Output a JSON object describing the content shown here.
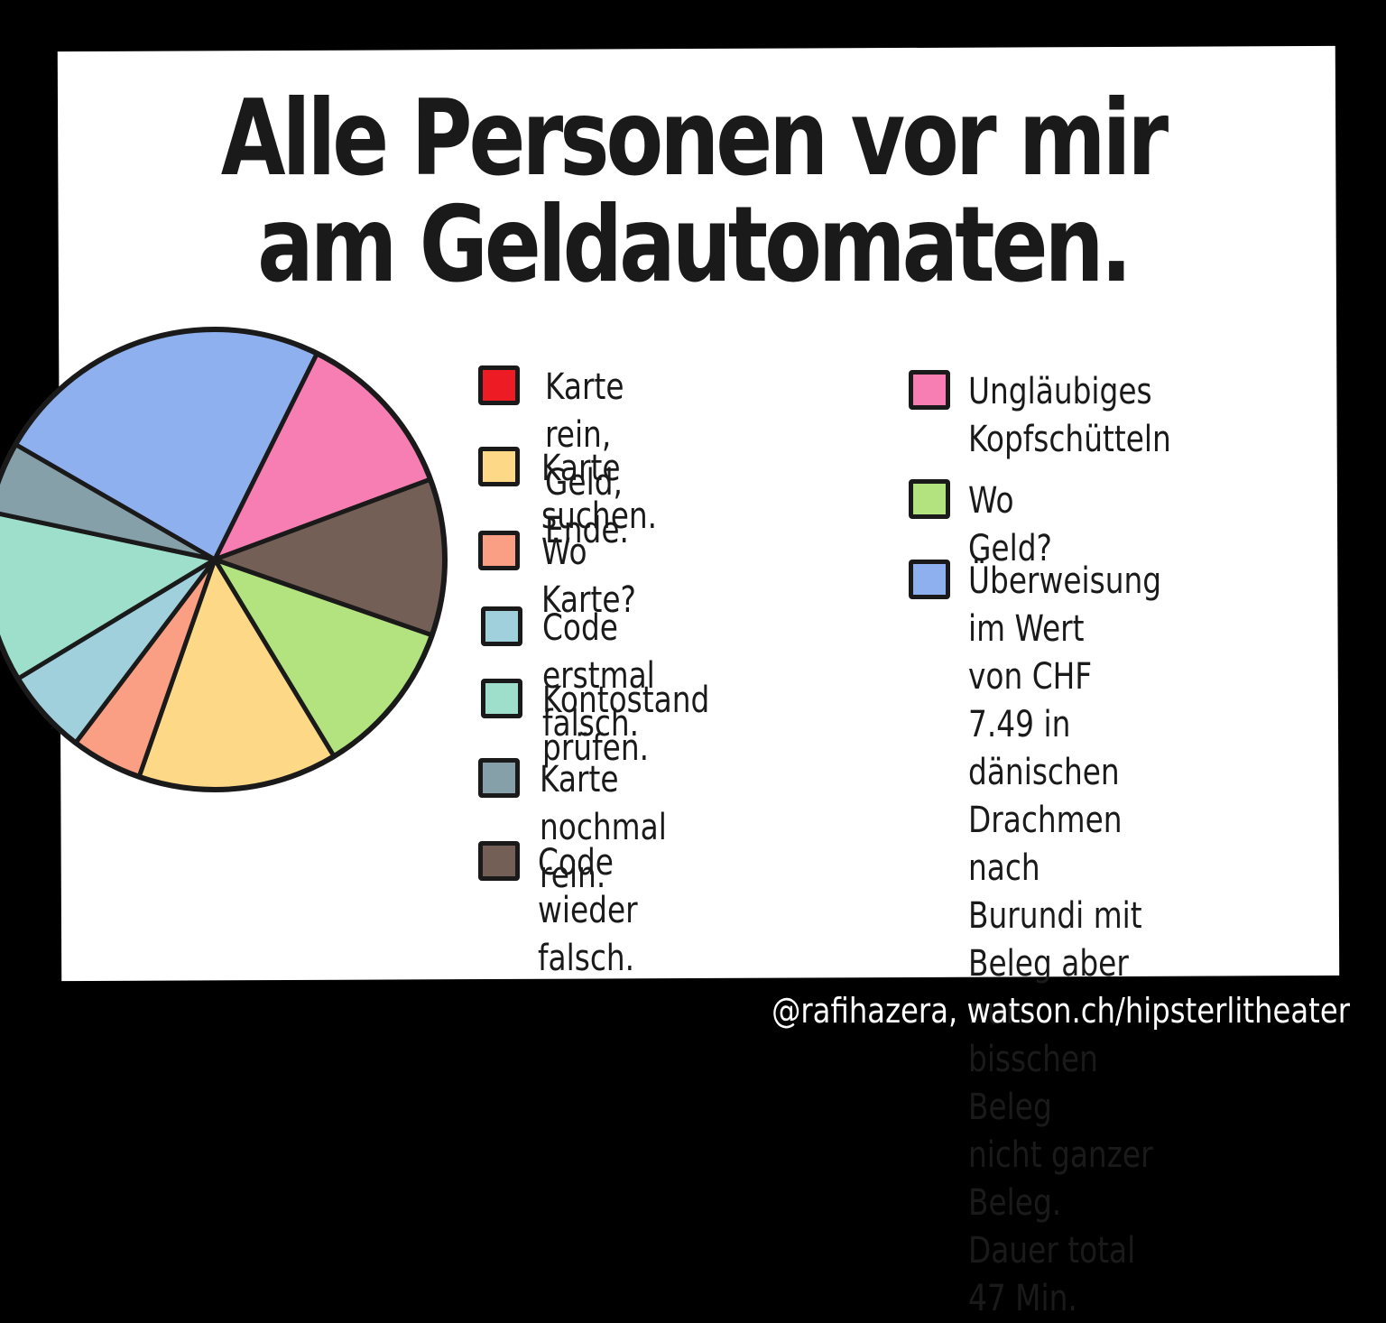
{
  "title": "Alle Personen vor mir\nam Geldautomaten.",
  "credit": "@rafihazera, watson.ch/hipsterlitheater",
  "chart_data": {
    "type": "pie",
    "title": "Alle Personen vor mir am Geldautomaten.",
    "unit": "percent",
    "slices": [
      {
        "label": "Überweisung im Wert von CHF 7.49 in dänischen Drachmen nach Burundi mit Beleg aber nur bisschen Beleg nicht ganzer Beleg. Dauer total 47 Min.",
        "value": 24,
        "color": "#8fb0ee"
      },
      {
        "label": "Ungläubiges Kopfschütteln",
        "value": 12,
        "color": "#f77eb2"
      },
      {
        "label": "Code wieder falsch.",
        "value": 11,
        "color": "#735f55"
      },
      {
        "label": "Wo Geld?",
        "value": 11,
        "color": "#b3e37f"
      },
      {
        "label": "Karte suchen.",
        "value": 14,
        "color": "#fcd887"
      },
      {
        "label": "Wo Karte?",
        "value": 5,
        "color": "#fb9f84"
      },
      {
        "label": "Code erstmal falsch.",
        "value": 6,
        "color": "#9fd0dc"
      },
      {
        "label": "Kontostand prüfen.",
        "value": 12,
        "color": "#9ddfcb"
      },
      {
        "label": "Karte nochmal rein.",
        "value": 5,
        "color": "#85a0a8"
      },
      {
        "label": "Karte rein, Geld, Ende.",
        "value": 0,
        "color": "#ed1c24"
      }
    ]
  },
  "legend": [
    {
      "label": "Karte rein, Geld, Ende.",
      "color": "#ed1c24"
    },
    {
      "label": "Karte suchen.",
      "color": "#fcd887"
    },
    {
      "label": "Wo Karte?",
      "color": "#fb9f84"
    },
    {
      "label": "Code erstmal falsch.",
      "color": "#9fd0dc"
    },
    {
      "label": "Kontostand prüfen.",
      "color": "#9ddfcb"
    },
    {
      "label": "Karte nochmal rein.",
      "color": "#85a0a8"
    },
    {
      "label": "Code wieder falsch.",
      "color": "#735f55"
    },
    {
      "label": "Ungläubiges\nKopfschütteln",
      "color": "#f77eb2"
    },
    {
      "label": "Wo Geld?",
      "color": "#b3e37f"
    },
    {
      "label": "Überweisung im Wert\nvon CHF 7.49 in\ndänischen Drachmen\nnach Burundi mit\nBeleg aber nur\nbisschen Beleg\nnicht ganzer Beleg.\nDauer total 47 Min.",
      "color": "#8fb0ee"
    }
  ]
}
